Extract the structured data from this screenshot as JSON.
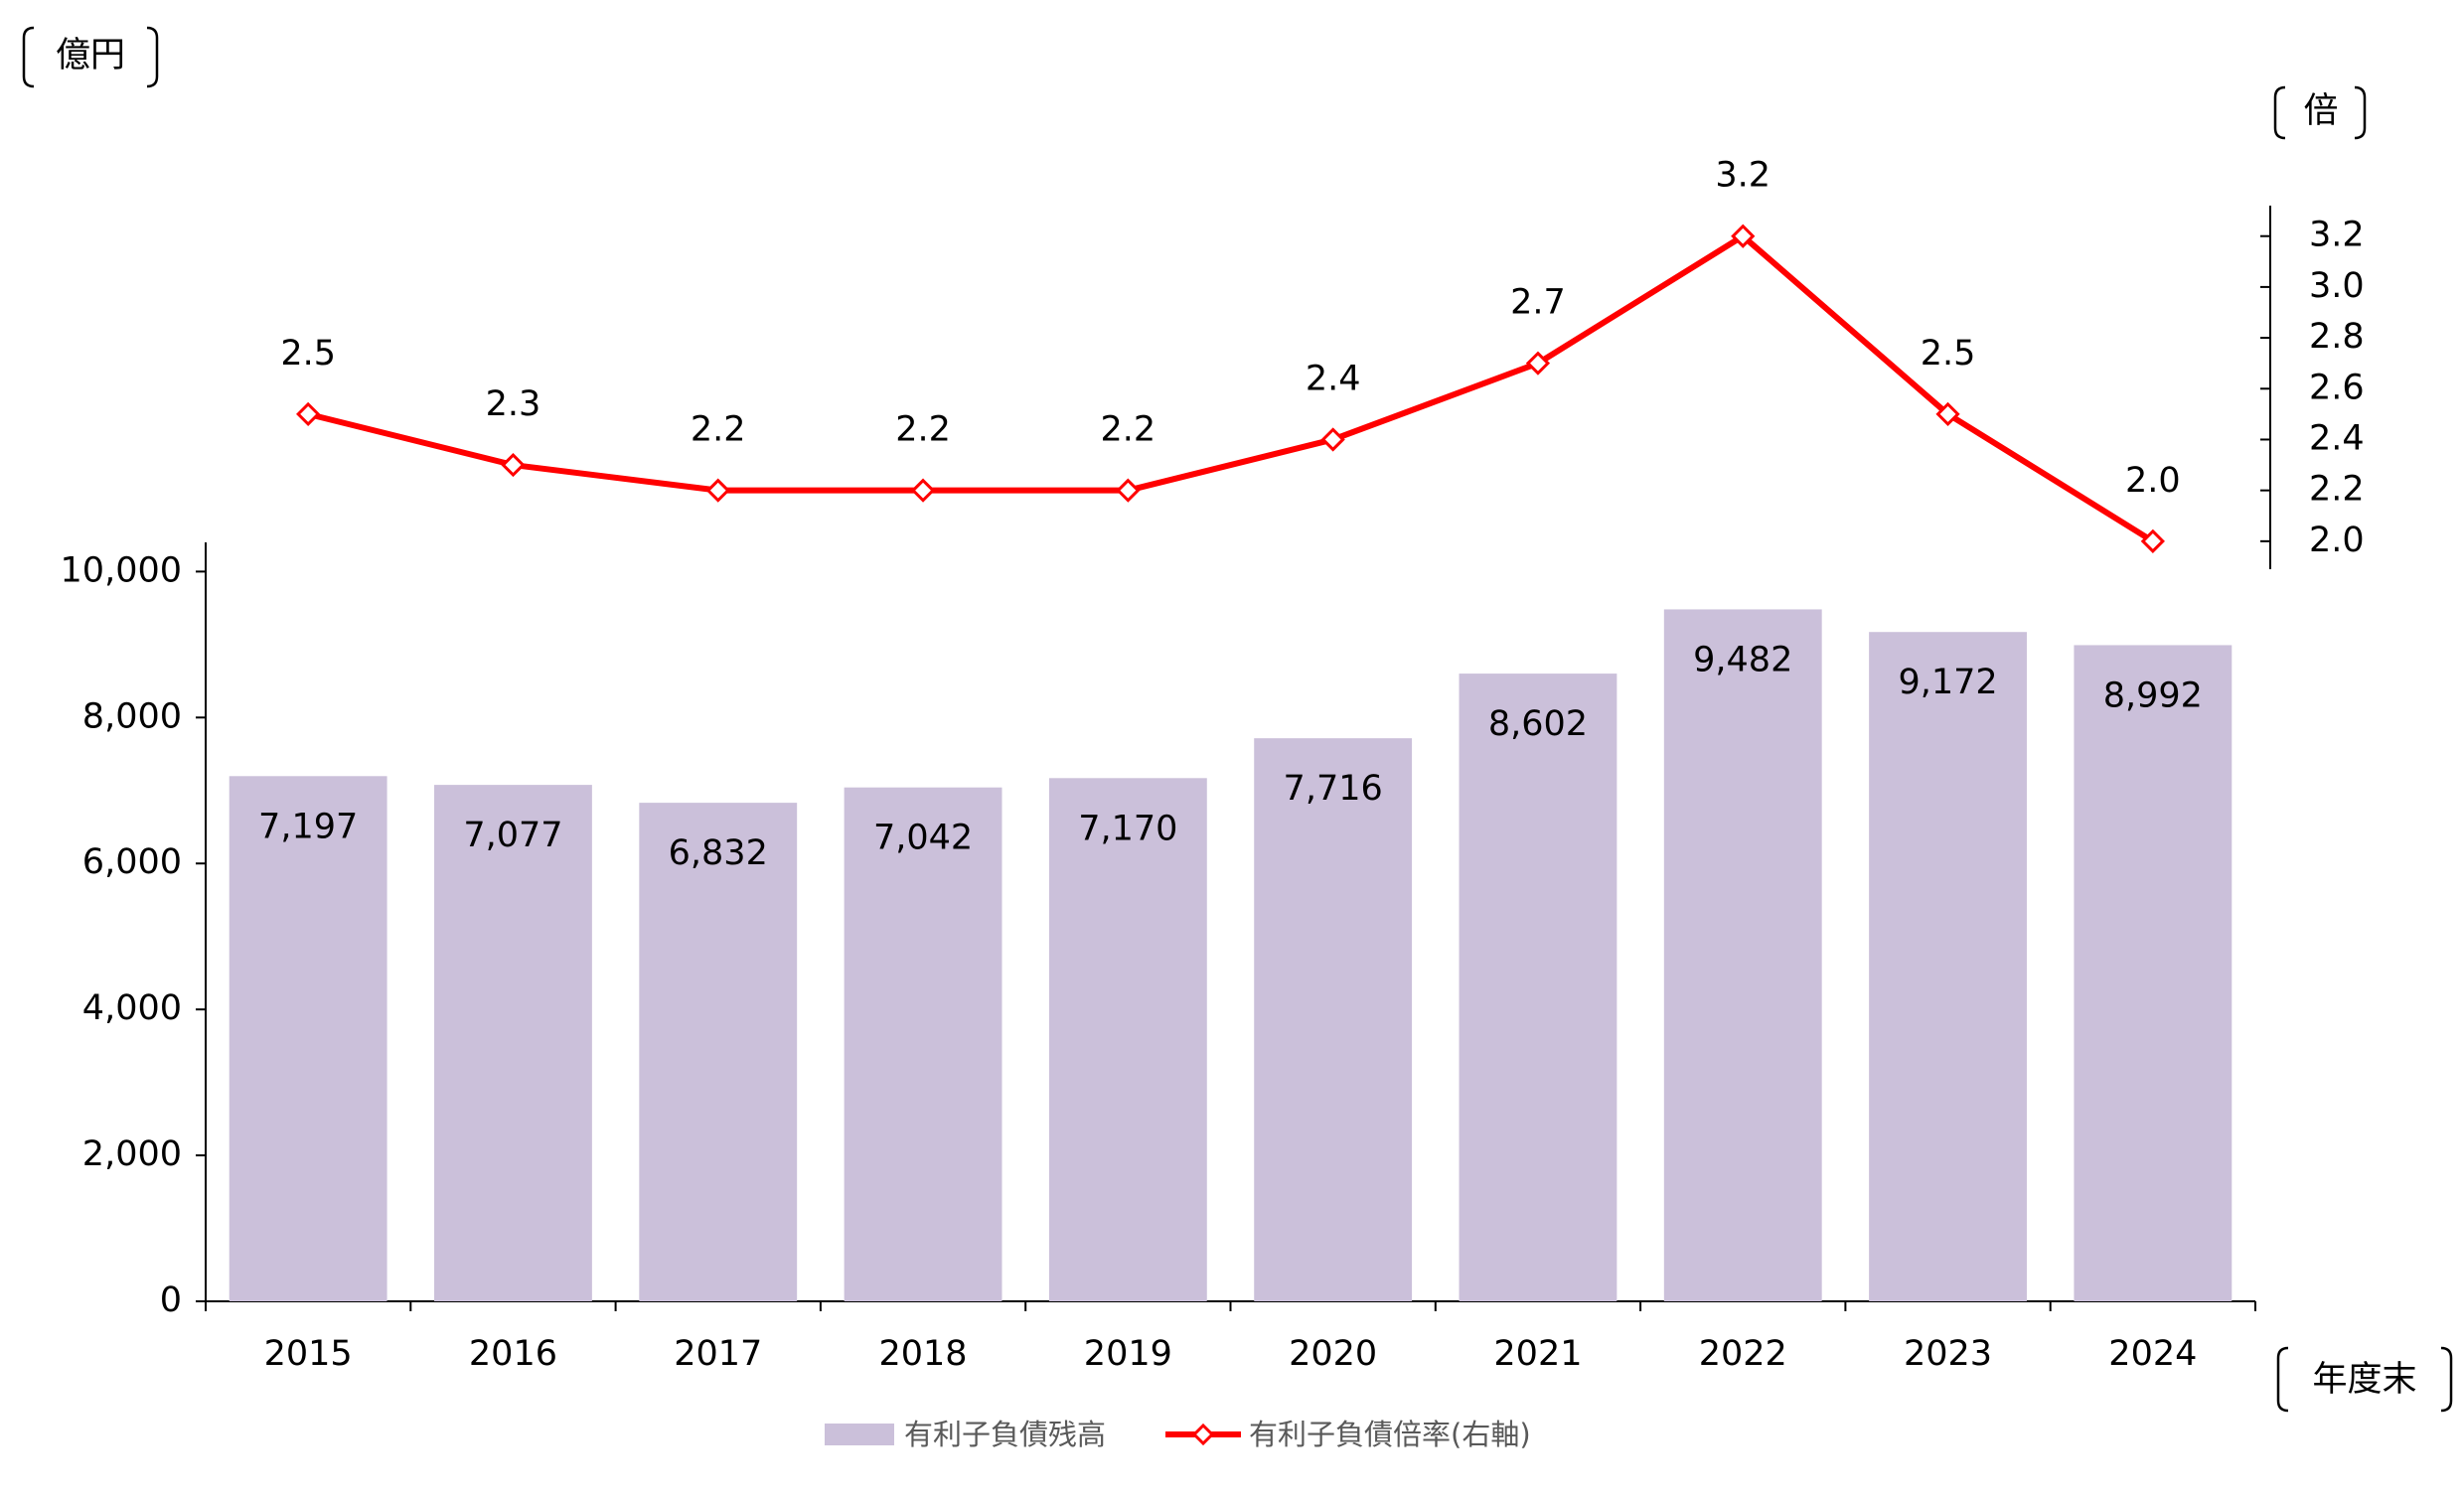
{
  "chart_data": {
    "type": "bar-line",
    "y_axis_label": "億円",
    "y2_axis_label": "倍",
    "x_axis_label": "年度末",
    "categories": [
      "2015",
      "2016",
      "2017",
      "2018",
      "2019",
      "2020",
      "2021",
      "2022",
      "2023",
      "2024"
    ],
    "series": [
      {
        "name": "有利子負債残高",
        "type": "bar",
        "color": "#cbc0da",
        "values": [
          7197,
          7077,
          6832,
          7042,
          7170,
          7716,
          8602,
          9482,
          9172,
          8992
        ],
        "value_labels": [
          "7,197",
          "7,077",
          "6,832",
          "7,042",
          "7,170",
          "7,716",
          "8,602",
          "9,482",
          "9,172",
          "8,992"
        ]
      },
      {
        "name": "有利子負債倍率(右軸)",
        "type": "line",
        "axis": "y2",
        "color": "#ff0000",
        "values": [
          2.5,
          2.3,
          2.2,
          2.2,
          2.2,
          2.4,
          2.7,
          3.2,
          2.5,
          2.0
        ],
        "value_labels": [
          "2.5",
          "2.3",
          "2.2",
          "2.2",
          "2.2",
          "2.4",
          "2.7",
          "3.2",
          "2.5",
          "2.0"
        ]
      }
    ],
    "ylim": [
      0,
      10400
    ],
    "yticks": [
      0,
      {
        "value": 2000,
        "label": "2,000"
      },
      {
        "value": 4000,
        "label": "4,000"
      },
      {
        "value": 6000,
        "label": "6,000"
      },
      {
        "value": 8000,
        "label": "8,000"
      },
      {
        "value": 10000,
        "label": "10,000"
      }
    ],
    "y2lim": [
      1.89,
      3.32
    ],
    "y2ticks": [
      {
        "value": 2,
        "label": "2.0"
      },
      2.2,
      2.4,
      2.6,
      2.8,
      {
        "value": 3,
        "label": "3.0"
      },
      3.2
    ],
    "grid": false
  }
}
